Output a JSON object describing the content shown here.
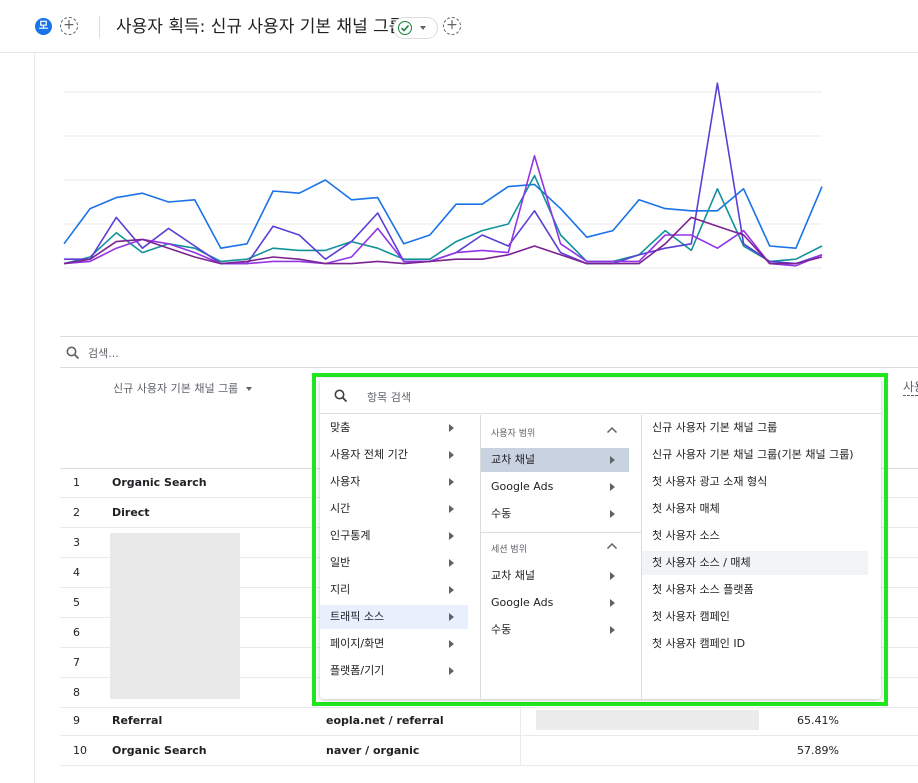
{
  "header": {
    "badge_label": "모",
    "title": "사용자 획득: 신규 사용자 기본 채널 그룹"
  },
  "colors": {
    "accent": "#1a73e8",
    "highlight": "#1fe61f",
    "series": [
      "#1a73e8",
      "#12939a",
      "#5b3fd6",
      "#9334e6",
      "#7b2491"
    ]
  },
  "chart_data": {
    "type": "line",
    "title": "",
    "xlabel": "",
    "ylabel": "",
    "grid": true,
    "ylim": [
      0,
      4
    ],
    "x": [
      1,
      2,
      3,
      4,
      5,
      6,
      7,
      8,
      9,
      10,
      11,
      12,
      13,
      14,
      15,
      16,
      17,
      18,
      19,
      20,
      21,
      22,
      23,
      24,
      25,
      26,
      27,
      28,
      29,
      30
    ],
    "series": [
      {
        "values": [
          0.55,
          1.35,
          1.6,
          1.7,
          1.5,
          1.55,
          0.45,
          0.55,
          1.75,
          1.7,
          2.0,
          1.55,
          1.6,
          0.55,
          0.75,
          1.45,
          1.45,
          1.85,
          1.9,
          1.35,
          0.7,
          0.85,
          1.55,
          1.35,
          1.3,
          1.3,
          1.8,
          0.5,
          0.45,
          1.85
        ]
      },
      {
        "values": [
          0.1,
          0.25,
          0.8,
          0.35,
          0.55,
          0.45,
          0.15,
          0.2,
          0.45,
          0.4,
          0.4,
          0.6,
          0.45,
          0.2,
          0.2,
          0.6,
          0.85,
          1.0,
          2.1,
          0.75,
          0.15,
          0.15,
          0.3,
          0.85,
          0.4,
          1.8,
          0.5,
          0.15,
          0.2,
          0.5
        ]
      },
      {
        "values": [
          0.2,
          0.2,
          1.15,
          0.45,
          0.9,
          0.5,
          0.1,
          0.1,
          0.95,
          0.75,
          0.2,
          0.6,
          1.25,
          0.15,
          0.15,
          0.35,
          0.75,
          0.5,
          1.3,
          0.35,
          0.1,
          0.1,
          0.3,
          0.45,
          0.55,
          4.2,
          0.55,
          0.15,
          0.1,
          0.3
        ]
      },
      {
        "values": [
          0.1,
          0.15,
          0.45,
          0.65,
          0.55,
          0.35,
          0.1,
          0.1,
          0.15,
          0.15,
          0.1,
          0.25,
          0.9,
          0.15,
          0.15,
          0.35,
          0.4,
          0.35,
          2.55,
          0.55,
          0.15,
          0.15,
          0.15,
          0.75,
          0.75,
          0.45,
          0.85,
          0.1,
          0.05,
          0.3
        ]
      },
      {
        "values": [
          0.1,
          0.2,
          0.6,
          0.65,
          0.45,
          0.25,
          0.1,
          0.15,
          0.25,
          0.2,
          0.1,
          0.1,
          0.15,
          0.1,
          0.15,
          0.2,
          0.2,
          0.3,
          0.5,
          0.3,
          0.1,
          0.1,
          0.1,
          0.55,
          1.15,
          0.95,
          0.75,
          0.1,
          0.1,
          0.25
        ]
      }
    ]
  },
  "table": {
    "search_placeholder": "검색...",
    "dimension_header": "신규 사용자 기본 채널 그룹",
    "cut_header": "사용",
    "rows": [
      {
        "num": "1",
        "channel": "Organic Search",
        "source": "",
        "pct": ""
      },
      {
        "num": "2",
        "channel": "Direct",
        "source": "",
        "pct": ""
      },
      {
        "num": "3",
        "channel": "",
        "source": "",
        "pct": ""
      },
      {
        "num": "4",
        "channel": "",
        "source": "",
        "pct": ""
      },
      {
        "num": "5",
        "channel": "",
        "source": "",
        "pct": ""
      },
      {
        "num": "6",
        "channel": "",
        "source": "",
        "pct": ""
      },
      {
        "num": "7",
        "channel": "",
        "source": "",
        "pct": ""
      },
      {
        "num": "8",
        "channel": "",
        "source": "",
        "pct": ""
      },
      {
        "num": "9",
        "channel": "Referral",
        "source": "eopla.net / referral",
        "pct": "65.41%"
      },
      {
        "num": "10",
        "channel": "Organic Search",
        "source": "naver / organic",
        "pct": "57.89%"
      }
    ]
  },
  "dropdown": {
    "search_placeholder": "항목 검색",
    "categories": [
      "맞춤",
      "사용자 전체 기간",
      "사용자",
      "시간",
      "인구통계",
      "일반",
      "지리",
      "트래픽 소스",
      "페이지/화면",
      "플랫폼/기기"
    ],
    "selected_category": "트래픽 소스",
    "user_scope_label": "사용자 범위",
    "user_scope_items": [
      "교차 채널",
      "Google Ads",
      "수동"
    ],
    "session_scope_label": "세션 범위",
    "session_scope_items": [
      "교차 채널",
      "Google Ads",
      "수동"
    ],
    "dimensions": [
      "신규 사용자 기본 채널 그룹",
      "신규 사용자 기본 채널 그룹(기본 채널 그룹)",
      "첫 사용자 광고 소재 형식",
      "첫 사용자 매체",
      "첫 사용자 소스",
      "첫 사용자 소스 / 매체",
      "첫 사용자 소스 플랫폼",
      "첫 사용자 캠페인",
      "첫 사용자 캠페인 ID"
    ],
    "hovered_dimension": "첫 사용자 소스 / 매체"
  }
}
